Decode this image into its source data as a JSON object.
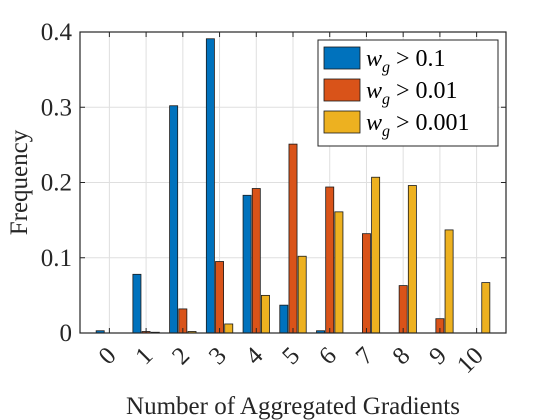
{
  "chart_data": {
    "type": "bar",
    "categories": [
      "0",
      "1",
      "2",
      "3",
      "4",
      "5",
      "6",
      "7",
      "8",
      "9",
      "10"
    ],
    "series": [
      {
        "name": "w_g > 0.1",
        "legend_main": "w",
        "legend_sub": "g",
        "legend_rest": " > 0.1",
        "color": "#0072BD",
        "values": [
          0.003,
          0.078,
          0.302,
          0.391,
          0.183,
          0.037,
          0.003,
          0.0,
          0.0,
          0.0,
          0.0
        ]
      },
      {
        "name": "w_g > 0.01",
        "legend_main": "w",
        "legend_sub": "g",
        "legend_rest": " > 0.01",
        "color": "#D95319",
        "values": [
          0.0,
          0.002,
          0.032,
          0.095,
          0.192,
          0.251,
          0.194,
          0.132,
          0.063,
          0.019,
          0.0
        ]
      },
      {
        "name": "w_g > 0.001",
        "legend_main": "w",
        "legend_sub": "g",
        "legend_rest": " > 0.001",
        "color": "#EDB120",
        "values": [
          0.0,
          0.001,
          0.002,
          0.012,
          0.05,
          0.102,
          0.161,
          0.207,
          0.196,
          0.137,
          0.067
        ]
      }
    ],
    "xlabel": "Number of Aggregated Gradients",
    "ylabel": "Frequency",
    "ylim": [
      0,
      0.4
    ],
    "yticks": [
      0,
      0.1,
      0.2,
      0.3,
      0.4
    ],
    "ytick_labels": [
      "0",
      "0.1",
      "0.2",
      "0.3",
      "0.4"
    ],
    "grid": true,
    "legend_position": "top-right"
  }
}
